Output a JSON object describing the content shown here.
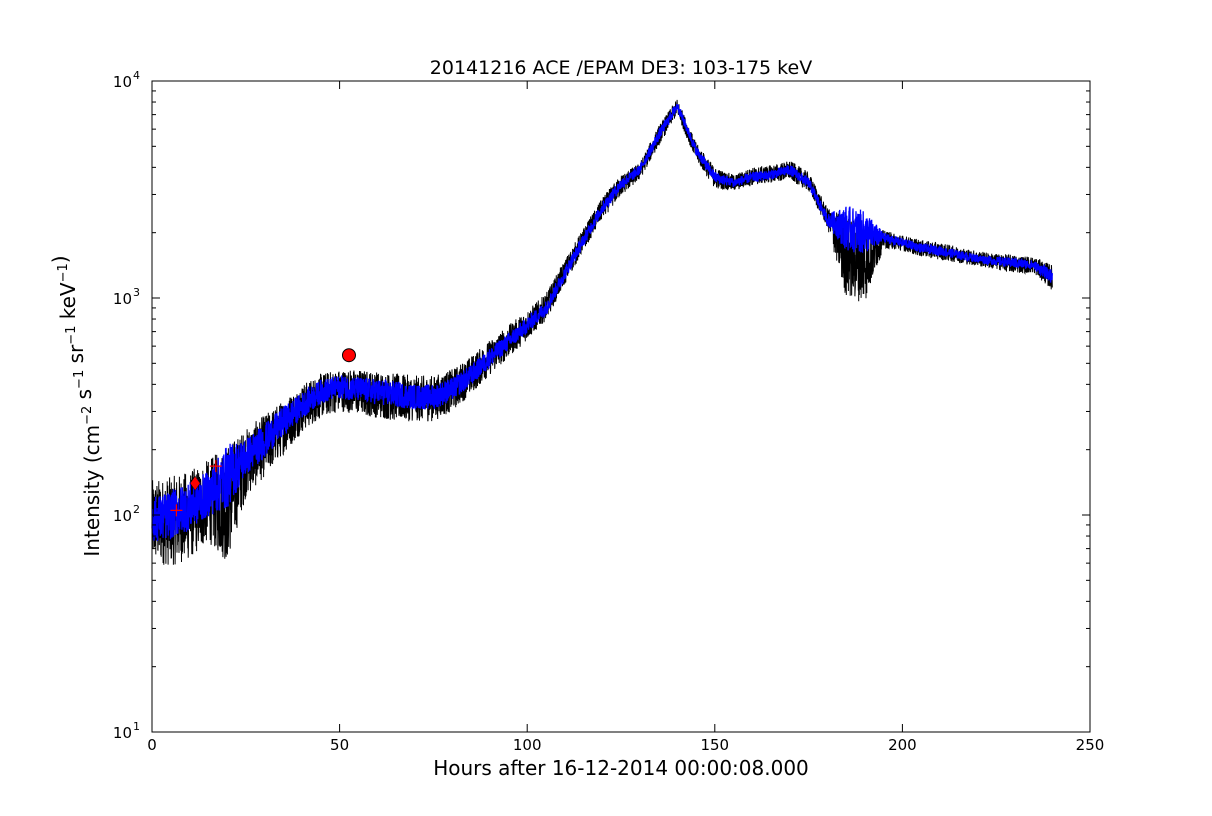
{
  "chart_data": {
    "type": "line",
    "title": "20141216 ACE /EPAM DE3: 103-175 keV",
    "xlabel": "Hours after 16-12-2014 00:00:08.000",
    "ylabel": {
      "prefix": "Intensity (cm",
      "parts": [
        {
          "text": "cm",
          "sup": "−2"
        },
        {
          "text": " s",
          "sup": "−1"
        },
        {
          "text": " sr",
          "sup": "−1"
        },
        {
          "text": " keV",
          "sup": "−1"
        }
      ],
      "suffix": ")"
    },
    "xlim": [
      0,
      250
    ],
    "ylim": [
      10,
      10000
    ],
    "yscale": "log",
    "grid": false,
    "x_ticks": [
      0,
      50,
      100,
      150,
      200,
      250
    ],
    "x_tick_labels": [
      "0",
      "50",
      "100",
      "150",
      "200",
      "250"
    ],
    "y_ticks": [
      10,
      100,
      1000,
      10000
    ],
    "y_tick_labels": [
      {
        "base": "10",
        "exp": "1"
      },
      {
        "base": "10",
        "exp": "2"
      },
      {
        "base": "10",
        "exp": "3"
      },
      {
        "base": "10",
        "exp": "4"
      }
    ],
    "series": [
      {
        "color": "#000000",
        "style": "upper-envelope",
        "x": [
          0,
          5,
          10,
          15,
          20,
          25,
          30,
          35,
          40,
          45,
          50,
          55,
          60,
          65,
          70,
          75,
          80,
          85,
          90,
          95,
          100,
          105,
          110,
          115,
          120,
          125,
          130,
          135,
          140,
          145,
          150,
          155,
          160,
          165,
          170,
          175,
          180,
          185,
          190,
          195,
          200,
          205,
          210,
          215,
          220,
          225,
          230,
          235,
          240
        ],
        "values": [
          145,
          150,
          160,
          180,
          210,
          250,
          290,
          340,
          400,
          450,
          470,
          470,
          460,
          450,
          440,
          440,
          470,
          540,
          640,
          750,
          880,
          1050,
          1500,
          2100,
          2900,
          3700,
          4200,
          6200,
          8300,
          5200,
          4000,
          3700,
          4000,
          4100,
          4300,
          3800,
          2600,
          2400,
          2200,
          2050,
          1950,
          1850,
          1800,
          1720,
          1650,
          1600,
          1580,
          1550,
          1420
        ]
      },
      {
        "color": "#000000",
        "style": "lower-envelope",
        "x": [
          0,
          5,
          10,
          15,
          20,
          25,
          30,
          35,
          40,
          45,
          50,
          55,
          60,
          65,
          70,
          75,
          80,
          85,
          90,
          95,
          100,
          105,
          110,
          115,
          120,
          125,
          130,
          135,
          140,
          145,
          150,
          155,
          160,
          165,
          170,
          175,
          180,
          185,
          190,
          195,
          200,
          205,
          210,
          215,
          220,
          225,
          230,
          235,
          240
        ],
        "values": [
          60,
          58,
          62,
          75,
          60,
          120,
          150,
          190,
          240,
          280,
          300,
          290,
          280,
          270,
          270,
          270,
          300,
          360,
          440,
          530,
          640,
          790,
          1150,
          1650,
          2300,
          2950,
          3500,
          5000,
          7000,
          4300,
          3200,
          3100,
          3300,
          3400,
          3500,
          3100,
          2100,
          1000,
          950,
          1700,
          1650,
          1550,
          1500,
          1450,
          1400,
          1350,
          1300,
          1300,
          1080
        ]
      },
      {
        "color": "#0000ff",
        "style": "band-center",
        "x": [
          0,
          5,
          10,
          15,
          20,
          25,
          30,
          35,
          40,
          45,
          50,
          55,
          60,
          65,
          70,
          75,
          80,
          85,
          90,
          95,
          100,
          105,
          110,
          115,
          120,
          125,
          130,
          135,
          140,
          145,
          150,
          155,
          160,
          165,
          170,
          175,
          180,
          185,
          190,
          195,
          200,
          205,
          210,
          215,
          220,
          225,
          230,
          235,
          240
        ],
        "values": [
          95,
          100,
          110,
          125,
          150,
          185,
          220,
          270,
          320,
          370,
          390,
          380,
          370,
          360,
          350,
          350,
          380,
          440,
          530,
          630,
          750,
          900,
          1300,
          1850,
          2600,
          3350,
          3900,
          5600,
          7700,
          4800,
          3600,
          3400,
          3600,
          3700,
          3900,
          3400,
          2300,
          2100,
          2000,
          1900,
          1800,
          1700,
          1650,
          1580,
          1520,
          1480,
          1450,
          1420,
          1250
        ]
      }
    ],
    "markers": [
      {
        "shape": "plus",
        "color": "#ff0000",
        "x": 6.5,
        "y": 105
      },
      {
        "shape": "diamond",
        "color": "#ff0000",
        "x": 11.5,
        "y": 140
      },
      {
        "shape": "plus",
        "color": "#ff0000",
        "x": 17,
        "y": 168
      },
      {
        "shape": "circle",
        "color": "#ff0000",
        "x": 52.5,
        "y": 545
      }
    ]
  }
}
